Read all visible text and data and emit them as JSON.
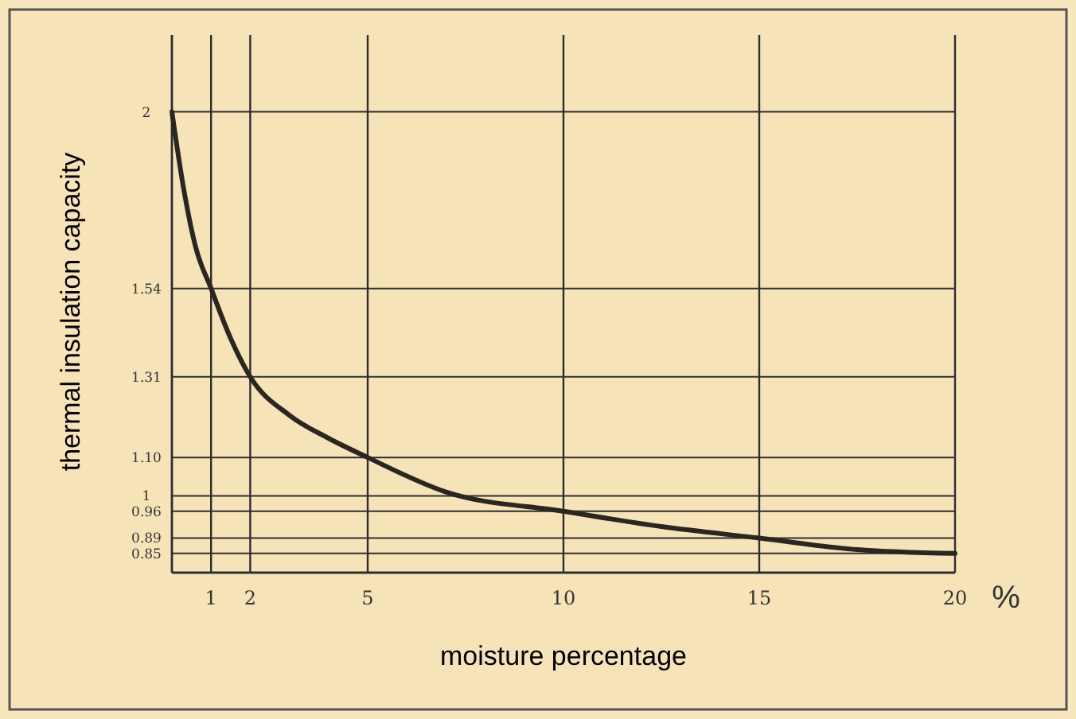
{
  "chart_data": {
    "type": "line",
    "xlabel": "moisture percentage",
    "ylabel": "thermal insulation capacity",
    "annotations": [
      "%"
    ],
    "x": [
      0,
      0.3,
      0.6,
      1,
      1.5,
      2,
      3,
      4,
      5,
      7,
      10,
      12.5,
      15,
      17.5,
      20
    ],
    "series": [
      {
        "color": "#2b2622",
        "values": [
          2,
          1.8,
          1.65,
          1.54,
          1.41,
          1.31,
          1.21,
          1.15,
          1.1,
          1.01,
          0.96,
          0.92,
          0.89,
          0.86,
          0.85
        ]
      }
    ],
    "xlim": [
      0,
      20
    ],
    "xticks": [
      1,
      2,
      5,
      10,
      15,
      20
    ],
    "ylim": [
      0.8,
      2.2
    ],
    "yticks": [
      2,
      1.54,
      1.31,
      {
        "value": 1.1,
        "label": "1.10"
      },
      1,
      0.96,
      0.89,
      0.85
    ],
    "grid": true,
    "marker": "none",
    "line_style": "solid"
  }
}
